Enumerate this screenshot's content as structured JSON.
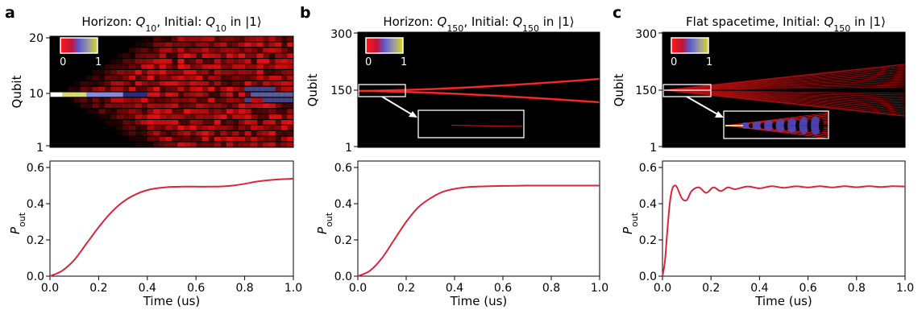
{
  "time_axis_label": "Time (us)",
  "colorbar_ticks": [
    "0",
    "1"
  ],
  "chart_data": [
    {
      "type": "heatmap",
      "panel": "a",
      "title_parts": [
        "Horizon: Q",
        "10",
        ", Initial: Q",
        "10",
        " in |1⟩"
      ],
      "ylabel": "Qubit",
      "yticks": [
        "20",
        "10",
        "1"
      ],
      "n_qubits": 20,
      "initial_qubit": 10,
      "pattern": "horizon",
      "inset": false,
      "colorbar_range": [
        0,
        1
      ],
      "colormap": [
        "#000000",
        "#ff1a1a",
        "#7a7ae0",
        "#c8c850",
        "#ffffff"
      ]
    },
    {
      "type": "heatmap",
      "panel": "b",
      "title_parts": [
        "Horizon: Q",
        "150",
        ", Initial: Q",
        "150",
        " in |1⟩"
      ],
      "ylabel": "Qubit",
      "yticks": [
        "300",
        "150",
        "1"
      ],
      "n_qubits": 300,
      "initial_qubit": 150,
      "pattern": "horizon",
      "inset": true,
      "colorbar_range": [
        0,
        1
      ]
    },
    {
      "type": "heatmap",
      "panel": "c",
      "title_parts": [
        "Flat spacetime, Initial: Q",
        "150",
        " in |1⟩"
      ],
      "ylabel": "Qubit",
      "yticks": [
        "300",
        "150",
        "1"
      ],
      "n_qubits": 300,
      "initial_qubit": 150,
      "pattern": "flat",
      "inset": true,
      "colorbar_range": [
        0,
        1
      ]
    },
    {
      "type": "line",
      "panel": "a",
      "xlabel": "Time (us)",
      "ylabel": "P_out",
      "xlim": [
        0,
        1.0
      ],
      "ylim": [
        0,
        0.6
      ],
      "xticks": [
        "0.0",
        "0.2",
        "0.4",
        "0.6",
        "0.8",
        "1.0"
      ],
      "yticks": [
        "0.0",
        "0.2",
        "0.4",
        "0.6"
      ],
      "color": "#d7263d",
      "x": [
        0,
        0.05,
        0.1,
        0.15,
        0.2,
        0.25,
        0.3,
        0.35,
        0.4,
        0.45,
        0.5,
        0.55,
        0.6,
        0.65,
        0.7,
        0.75,
        0.8,
        0.85,
        0.9,
        0.95,
        1.0
      ],
      "y": [
        0.0,
        0.03,
        0.09,
        0.18,
        0.27,
        0.35,
        0.41,
        0.45,
        0.475,
        0.487,
        0.493,
        0.494,
        0.494,
        0.494,
        0.495,
        0.5,
        0.51,
        0.522,
        0.53,
        0.535,
        0.538
      ]
    },
    {
      "type": "line",
      "panel": "b",
      "xlabel": "Time (us)",
      "ylabel": "P_out",
      "xlim": [
        0,
        1.0
      ],
      "ylim": [
        0,
        0.6
      ],
      "xticks": [
        "0.0",
        "0.2",
        "0.4",
        "0.6",
        "0.8",
        "1.0"
      ],
      "yticks": [
        "0.0",
        "0.2",
        "0.4",
        "0.6"
      ],
      "color": "#d7263d",
      "x": [
        0,
        0.05,
        0.1,
        0.15,
        0.2,
        0.25,
        0.3,
        0.35,
        0.4,
        0.45,
        0.5,
        0.55,
        0.6,
        0.65,
        0.7,
        0.8,
        0.9,
        1.0
      ],
      "y": [
        0.0,
        0.03,
        0.1,
        0.2,
        0.3,
        0.38,
        0.43,
        0.465,
        0.482,
        0.491,
        0.495,
        0.497,
        0.498,
        0.499,
        0.5,
        0.5,
        0.5,
        0.5
      ]
    },
    {
      "type": "line",
      "panel": "c",
      "xlabel": "Time (us)",
      "ylabel": "P_out",
      "xlim": [
        0,
        1.0
      ],
      "ylim": [
        0,
        0.6
      ],
      "xticks": [
        "0.0",
        "0.2",
        "0.4",
        "0.6",
        "0.8",
        "1.0"
      ],
      "yticks": [
        "0.0",
        "0.2",
        "0.4",
        "0.6"
      ],
      "color": "#d7263d",
      "x": [
        0,
        0.01,
        0.02,
        0.03,
        0.04,
        0.05,
        0.06,
        0.08,
        0.1,
        0.12,
        0.15,
        0.18,
        0.21,
        0.24,
        0.27,
        0.3,
        0.35,
        0.4,
        0.45,
        0.5,
        0.55,
        0.6,
        0.65,
        0.7,
        0.75,
        0.8,
        0.85,
        0.9,
        0.95,
        1.0
      ],
      "y": [
        0.0,
        0.08,
        0.25,
        0.4,
        0.48,
        0.5,
        0.49,
        0.43,
        0.42,
        0.47,
        0.49,
        0.46,
        0.49,
        0.47,
        0.49,
        0.48,
        0.495,
        0.485,
        0.497,
        0.488,
        0.496,
        0.49,
        0.497,
        0.49,
        0.497,
        0.491,
        0.497,
        0.492,
        0.497,
        0.495
      ]
    }
  ]
}
